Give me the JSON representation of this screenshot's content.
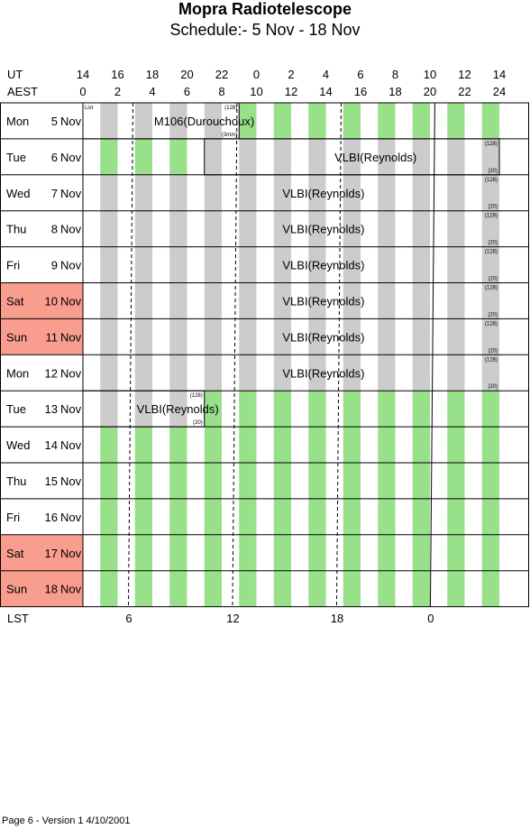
{
  "title": "Mopra Radiotelescope",
  "subtitle": "Schedule:- 5  Nov - 18 Nov",
  "header": {
    "ut_label": "UT",
    "aest_label": "AEST",
    "ut_hours": [
      "14",
      "16",
      "18",
      "20",
      "22",
      "0",
      "2",
      "4",
      "6",
      "8",
      "10",
      "12",
      "14"
    ],
    "aest_hours": [
      "0",
      "2",
      "4",
      "6",
      "8",
      "10",
      "12",
      "14",
      "16",
      "18",
      "20",
      "22",
      "24"
    ]
  },
  "lst": {
    "label": "LST",
    "ticks": [
      {
        "text": "6",
        "hour": 2.7
      },
      {
        "text": "12",
        "hour": 8.7
      },
      {
        "text": "18",
        "hour": 14.7
      },
      {
        "text": "0",
        "hour": 20.1
      }
    ],
    "lines": [
      {
        "hour": 2.7,
        "dashed": true
      },
      {
        "hour": 8.7,
        "dashed": true
      },
      {
        "hour": 14.7,
        "dashed": true
      },
      {
        "hour": 20.1,
        "dashed": false
      }
    ]
  },
  "colors": {
    "gray": "#cccccc",
    "green": "#99e08a",
    "weekend": "#f99d8e"
  },
  "days": [
    {
      "dow": "Mon",
      "date": "5",
      "mon": "Nov",
      "weekend": false
    },
    {
      "dow": "Tue",
      "date": "6",
      "mon": "Nov",
      "weekend": false
    },
    {
      "dow": "Wed",
      "date": "7",
      "mon": "Nov",
      "weekend": false
    },
    {
      "dow": "Thu",
      "date": "8",
      "mon": "Nov",
      "weekend": false
    },
    {
      "dow": "Fri",
      "date": "9",
      "mon": "Nov",
      "weekend": false
    },
    {
      "dow": "Sat",
      "date": "10",
      "mon": "Nov",
      "weekend": true
    },
    {
      "dow": "Sun",
      "date": "11",
      "mon": "Nov",
      "weekend": true
    },
    {
      "dow": "Mon",
      "date": "12",
      "mon": "Nov",
      "weekend": false
    },
    {
      "dow": "Tue",
      "date": "13",
      "mon": "Nov",
      "weekend": false
    },
    {
      "dow": "Wed",
      "date": "14",
      "mon": "Nov",
      "weekend": false
    },
    {
      "dow": "Thu",
      "date": "15",
      "mon": "Nov",
      "weekend": false
    },
    {
      "dow": "Fri",
      "date": "16",
      "mon": "Nov",
      "weekend": false
    },
    {
      "dow": "Sat",
      "date": "17",
      "mon": "Nov",
      "weekend": true
    },
    {
      "dow": "Sun",
      "date": "18",
      "mon": "Nov",
      "weekend": true
    }
  ],
  "stripes": [
    {
      "row": 0,
      "type": "gray",
      "hours": [
        1,
        3,
        5,
        7,
        9
      ]
    },
    {
      "row": 0,
      "type": "green",
      "hours": [
        9,
        11,
        13,
        15,
        17,
        19,
        21,
        23
      ]
    },
    {
      "row": 1,
      "type": "green",
      "hours": [
        1,
        3,
        5
      ]
    },
    {
      "row": 1,
      "type": "gray",
      "hours": [
        7,
        9,
        11,
        13,
        15,
        17,
        19,
        21,
        23
      ]
    },
    {
      "row": 2,
      "type": "gray",
      "hours": [
        1,
        3,
        5,
        7,
        9,
        11,
        13,
        15,
        17,
        19,
        21,
        23
      ]
    },
    {
      "row": 3,
      "type": "gray",
      "hours": [
        1,
        3,
        5,
        7,
        9,
        11,
        13,
        15,
        17,
        19,
        21,
        23
      ]
    },
    {
      "row": 4,
      "type": "gray",
      "hours": [
        1,
        3,
        5,
        7,
        9,
        11,
        13,
        15,
        17,
        19,
        21,
        23
      ]
    },
    {
      "row": 5,
      "type": "gray",
      "hours": [
        1,
        3,
        5,
        7,
        9,
        11,
        13,
        15,
        17,
        19,
        21,
        23
      ]
    },
    {
      "row": 6,
      "type": "gray",
      "hours": [
        1,
        3,
        5,
        7,
        9,
        11,
        13,
        15,
        17,
        19,
        21,
        23
      ]
    },
    {
      "row": 7,
      "type": "gray",
      "hours": [
        1,
        3,
        5,
        7,
        9,
        11,
        13,
        15,
        17,
        19,
        21,
        23
      ]
    },
    {
      "row": 8,
      "type": "gray",
      "hours": [
        1,
        3,
        5,
        7
      ]
    },
    {
      "row": 8,
      "type": "green",
      "hours": [
        7,
        9,
        11,
        13,
        15,
        17,
        19,
        21,
        23
      ]
    },
    {
      "row": 9,
      "type": "green",
      "hours": [
        1,
        3,
        5,
        7,
        9,
        11,
        13,
        15,
        17,
        19,
        21,
        23
      ]
    },
    {
      "row": 10,
      "type": "green",
      "hours": [
        1,
        3,
        5,
        7,
        9,
        11,
        13,
        15,
        17,
        19,
        21,
        23
      ]
    },
    {
      "row": 11,
      "type": "green",
      "hours": [
        1,
        3,
        5,
        7,
        9,
        11,
        13,
        15,
        17,
        19,
        21,
        23
      ]
    },
    {
      "row": 12,
      "type": "green",
      "hours": [
        1,
        3,
        5,
        7,
        9,
        11,
        13,
        15,
        17,
        19,
        21,
        23
      ]
    },
    {
      "row": 13,
      "type": "green",
      "hours": [
        1,
        3,
        5,
        7,
        9,
        11,
        13,
        15,
        17,
        19,
        21,
        23
      ]
    }
  ],
  "blocks": [
    {
      "row_start": 0,
      "row_end": 0,
      "start": 0,
      "end": 9,
      "label": "M106(Durouchoux)",
      "label_hour": 4.1,
      "top_left": "List",
      "top_right": "(128)",
      "bottom_right": "(3mm)"
    },
    {
      "row_start": 1,
      "row_end": 1,
      "start": 7,
      "end": 24,
      "label": "VLBI(Reynolds)",
      "label_hour": 14.5,
      "top_left": "",
      "top_right": "(128)",
      "bottom_right": "(20)"
    },
    {
      "row_start": 2,
      "row_end": 2,
      "start": 0,
      "end": 24,
      "label": "VLBI(Reynolds)",
      "label_hour": 11.5,
      "top_left": "",
      "top_right": "(128)",
      "bottom_right": "(20)"
    },
    {
      "row_start": 3,
      "row_end": 3,
      "start": 0,
      "end": 24,
      "label": "VLBI(Reynolds)",
      "label_hour": 11.5,
      "top_left": "",
      "top_right": "(128)",
      "bottom_right": "(20)"
    },
    {
      "row_start": 4,
      "row_end": 4,
      "start": 0,
      "end": 24,
      "label": "VLBI(Reynolds)",
      "label_hour": 11.5,
      "top_left": "",
      "top_right": "(128)",
      "bottom_right": "(20)"
    },
    {
      "row_start": 5,
      "row_end": 5,
      "start": 0,
      "end": 24,
      "label": "VLBI(Reynolds)",
      "label_hour": 11.5,
      "top_left": "",
      "top_right": "(128)",
      "bottom_right": "(20)"
    },
    {
      "row_start": 6,
      "row_end": 6,
      "start": 0,
      "end": 24,
      "label": "VLBI(Reynolds)",
      "label_hour": 11.5,
      "top_left": "",
      "top_right": "(128)",
      "bottom_right": "(20)"
    },
    {
      "row_start": 7,
      "row_end": 7,
      "start": 0,
      "end": 24,
      "label": "VLBI(Reynolds)",
      "label_hour": 11.5,
      "top_left": "",
      "top_right": "(128)",
      "bottom_right": "(20)"
    },
    {
      "row_start": 8,
      "row_end": 8,
      "start": 0,
      "end": 7,
      "label": "VLBI(Reynolds)",
      "label_hour": 3.1,
      "top_left": "",
      "top_right": "(128)",
      "bottom_right": "(20)"
    }
  ],
  "footer": "Page 6 - Version 1  4/10/2001"
}
